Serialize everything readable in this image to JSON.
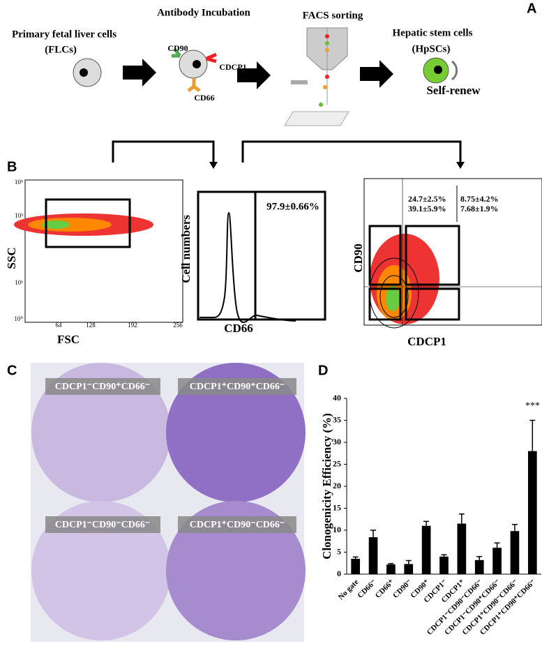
{
  "panel_a": {
    "label": "A",
    "step1": [
      "Primary fetal liver cells",
      "(FLCs)"
    ],
    "step2": {
      "title": "Antibody Incubation",
      "markers": [
        "CD90",
        "CDCP1",
        "CD66"
      ]
    },
    "step3": "FACS sorting",
    "step4": [
      "Hepatic stem cells",
      "(HpSCs)",
      "Self-renew"
    ]
  },
  "panel_b": {
    "label": "B",
    "scatter": {
      "ylabel": "SSC",
      "xlabel": "FSC",
      "xticks": [
        "64",
        "128",
        "192",
        "256"
      ],
      "yticks": [
        "10⁰",
        "10¹",
        "10³",
        "10⁵"
      ]
    },
    "histogram": {
      "ylabel": "Cell numbers",
      "xlabel": "CD66",
      "gate": "97.9±0.66%"
    },
    "contour": {
      "ylabel": "CD90",
      "xlabel": "CDCP1",
      "quadrants": [
        "24.7±2.5%",
        "8.75±4.2%",
        "39.1±5.9%",
        "7.68±1.9%"
      ]
    }
  },
  "panel_c": {
    "label": "C",
    "dishes": [
      "CDCP1⁻CD90⁺CD66⁻",
      "CDCP1⁺CD90⁺CD66⁻",
      "CDCP1⁻CD90⁻CD66⁻",
      "CDCP1⁺CD90⁻CD66⁻"
    ]
  },
  "chart_data": {
    "type": "bar",
    "panel": "D",
    "ylabel": "Clonogenicity Efficiency (%)",
    "categories": [
      "No gate",
      "CD66⁻",
      "CD66⁺",
      "CD90⁻",
      "CD90⁺",
      "CDCP1⁻",
      "CDCP1⁺",
      "CDCP1⁻CD90⁻CD66⁻",
      "CDCP1⁻CD90⁺CD66⁻",
      "CDCP1⁺CD90⁻CD66⁻",
      "CDCP1⁺CD90⁺CD66⁻"
    ],
    "values": [
      3.5,
      8.4,
      2.2,
      2.3,
      11,
      4,
      11.5,
      3.2,
      6,
      9.8,
      28
    ],
    "errors": [
      0.4,
      1.6,
      0.2,
      0.8,
      1,
      0.4,
      2.2,
      0.8,
      1.1,
      1.5,
      7
    ],
    "color": "#000000",
    "ylim": [
      0,
      40
    ],
    "yticks": [
      0,
      5,
      10,
      15,
      20,
      25,
      30,
      35,
      40
    ],
    "annotation": "***"
  }
}
